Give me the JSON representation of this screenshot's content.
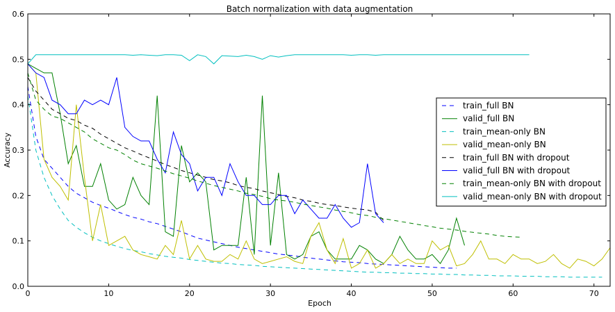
{
  "chart_data": {
    "type": "line",
    "title": "Batch normalization with data augmentation",
    "xlabel": "Epoch",
    "ylabel": "Accuracy",
    "xlim": [
      0,
      72
    ],
    "ylim": [
      0,
      0.6
    ],
    "xticks": [
      0,
      10,
      20,
      30,
      40,
      50,
      60,
      70
    ],
    "yticks": [
      0.0,
      0.1,
      0.2,
      0.3,
      0.4,
      0.5,
      0.6
    ],
    "xtick_labels": [
      "0",
      "10",
      "20",
      "30",
      "40",
      "50",
      "60",
      "70"
    ],
    "ytick_labels": [
      "0.0",
      "0.1",
      "0.2",
      "0.3",
      "0.4",
      "0.5",
      "0.6"
    ],
    "grid": false,
    "legend_position": "center-right",
    "series": [
      {
        "name": "train_full BN",
        "color": "#0000ff",
        "dash": "dashed",
        "x": [
          0,
          1,
          2,
          3,
          4,
          5,
          6,
          7,
          8,
          9,
          10,
          11,
          12,
          13,
          14,
          15,
          16,
          17,
          18,
          19,
          20,
          21,
          22,
          23,
          24,
          25,
          26,
          27,
          28,
          29,
          30,
          31,
          32,
          33,
          34,
          35,
          36,
          37,
          38,
          39,
          40,
          41,
          42,
          43,
          44,
          45,
          46,
          47,
          48,
          49,
          50,
          51,
          52,
          53
        ],
        "y": [
          0.44,
          0.33,
          0.28,
          0.26,
          0.24,
          0.22,
          0.205,
          0.195,
          0.185,
          0.178,
          0.172,
          0.165,
          0.158,
          0.152,
          0.148,
          0.142,
          0.138,
          0.132,
          0.126,
          0.12,
          0.113,
          0.106,
          0.102,
          0.098,
          0.094,
          0.09,
          0.086,
          0.083,
          0.08,
          0.077,
          0.074,
          0.071,
          0.069,
          0.067,
          0.064,
          0.062,
          0.06,
          0.058,
          0.056,
          0.054,
          0.053,
          0.052,
          0.05,
          0.049,
          0.048,
          0.047,
          0.046,
          0.045,
          0.044,
          0.043,
          0.042,
          0.041,
          0.04,
          0.04
        ]
      },
      {
        "name": "valid_full BN",
        "color": "#008000",
        "dash": "solid",
        "x": [
          0,
          1,
          2,
          3,
          4,
          5,
          6,
          7,
          8,
          9,
          10,
          11,
          12,
          13,
          14,
          15,
          16,
          17,
          18,
          19,
          20,
          21,
          22,
          23,
          24,
          25,
          26,
          27,
          28,
          29,
          30,
          31,
          32,
          33,
          34,
          35,
          36,
          37,
          38,
          39,
          40,
          41,
          42,
          43,
          44,
          45,
          46,
          47,
          48,
          49,
          50,
          51,
          52,
          53,
          54
        ],
        "y": [
          0.49,
          0.48,
          0.47,
          0.47,
          0.38,
          0.27,
          0.31,
          0.22,
          0.22,
          0.27,
          0.19,
          0.17,
          0.18,
          0.24,
          0.2,
          0.18,
          0.42,
          0.12,
          0.11,
          0.31,
          0.23,
          0.25,
          0.23,
          0.08,
          0.09,
          0.09,
          0.09,
          0.24,
          0.07,
          0.42,
          0.09,
          0.25,
          0.07,
          0.06,
          0.07,
          0.11,
          0.12,
          0.08,
          0.06,
          0.06,
          0.06,
          0.09,
          0.08,
          0.06,
          0.05,
          0.07,
          0.11,
          0.08,
          0.06,
          0.06,
          0.07,
          0.05,
          0.08,
          0.15,
          0.09
        ]
      },
      {
        "name": "train_mean-only BN",
        "color": "#00bfbf",
        "dash": "dashed",
        "x": [
          0,
          1,
          2,
          3,
          4,
          5,
          6,
          7,
          8,
          9,
          10,
          11,
          12,
          13,
          14,
          15,
          16,
          17,
          18,
          19,
          20,
          21,
          22,
          23,
          24,
          25,
          26,
          27,
          28,
          29,
          30,
          31,
          32,
          33,
          34,
          35,
          36,
          37,
          38,
          39,
          40,
          41,
          42,
          43,
          44,
          45,
          46,
          47,
          48,
          49,
          50,
          51,
          52,
          53,
          54,
          55,
          56,
          57,
          58,
          59,
          60,
          61,
          62,
          63,
          64,
          65,
          66,
          67,
          68,
          69,
          70,
          71
        ],
        "y": [
          0.42,
          0.3,
          0.24,
          0.2,
          0.17,
          0.145,
          0.13,
          0.118,
          0.108,
          0.1,
          0.094,
          0.088,
          0.083,
          0.079,
          0.076,
          0.072,
          0.069,
          0.066,
          0.064,
          0.062,
          0.059,
          0.057,
          0.055,
          0.053,
          0.051,
          0.05,
          0.048,
          0.047,
          0.046,
          0.044,
          0.043,
          0.042,
          0.041,
          0.04,
          0.039,
          0.038,
          0.037,
          0.036,
          0.035,
          0.034,
          0.033,
          0.032,
          0.031,
          0.031,
          0.03,
          0.03,
          0.029,
          0.029,
          0.028,
          0.028,
          0.027,
          0.027,
          0.026,
          0.026,
          0.025,
          0.025,
          0.024,
          0.024,
          0.023,
          0.023,
          0.023,
          0.022,
          0.022,
          0.022,
          0.021,
          0.021,
          0.021,
          0.02,
          0.02,
          0.02,
          0.02,
          0.02
        ]
      },
      {
        "name": "valid_mean-only BN",
        "color": "#bfbf00",
        "dash": "solid",
        "x": [
          0,
          1,
          2,
          3,
          4,
          5,
          6,
          7,
          8,
          9,
          10,
          11,
          12,
          13,
          14,
          15,
          16,
          17,
          18,
          19,
          20,
          21,
          22,
          23,
          24,
          25,
          26,
          27,
          28,
          29,
          30,
          31,
          32,
          33,
          34,
          35,
          36,
          37,
          38,
          39,
          40,
          41,
          42,
          43,
          44,
          45,
          46,
          47,
          48,
          49,
          50,
          51,
          52,
          53,
          54,
          55,
          56,
          57,
          58,
          59,
          60,
          61,
          62,
          63,
          64,
          65,
          66,
          67,
          68,
          69,
          70,
          71,
          72
        ],
        "y": [
          0.49,
          0.47,
          0.28,
          0.24,
          0.22,
          0.19,
          0.4,
          0.24,
          0.1,
          0.18,
          0.09,
          0.1,
          0.11,
          0.08,
          0.07,
          0.065,
          0.06,
          0.09,
          0.07,
          0.145,
          0.06,
          0.09,
          0.06,
          0.055,
          0.055,
          0.07,
          0.06,
          0.1,
          0.06,
          0.05,
          0.055,
          0.06,
          0.065,
          0.055,
          0.05,
          0.11,
          0.14,
          0.08,
          0.05,
          0.105,
          0.04,
          0.05,
          0.08,
          0.04,
          0.05,
          0.07,
          0.05,
          0.06,
          0.05,
          0.05,
          0.1,
          0.08,
          0.09,
          0.045,
          0.05,
          0.07,
          0.1,
          0.06,
          0.06,
          0.05,
          0.07,
          0.06,
          0.06,
          0.05,
          0.055,
          0.07,
          0.05,
          0.04,
          0.06,
          0.055,
          0.045,
          0.06,
          0.085
        ]
      },
      {
        "name": "train_full BN with dropout",
        "color": "#000000",
        "dash": "dashed",
        "x": [
          0,
          1,
          2,
          3,
          4,
          5,
          6,
          7,
          8,
          9,
          10,
          11,
          12,
          13,
          14,
          15,
          16,
          17,
          18,
          19,
          20,
          21,
          22,
          23,
          24,
          25,
          26,
          27,
          28,
          29,
          30,
          31,
          32,
          33,
          34,
          35,
          36,
          37,
          38,
          39,
          40,
          41,
          42,
          43,
          44
        ],
        "y": [
          0.46,
          0.43,
          0.41,
          0.39,
          0.38,
          0.37,
          0.365,
          0.355,
          0.348,
          0.335,
          0.325,
          0.315,
          0.305,
          0.298,
          0.29,
          0.283,
          0.276,
          0.268,
          0.262,
          0.255,
          0.25,
          0.245,
          0.24,
          0.235,
          0.232,
          0.228,
          0.222,
          0.218,
          0.215,
          0.21,
          0.206,
          0.202,
          0.198,
          0.195,
          0.19,
          0.187,
          0.183,
          0.18,
          0.178,
          0.175,
          0.172,
          0.17,
          0.168,
          0.163,
          0.145
        ]
      },
      {
        "name": "valid_full BN with dropout",
        "color": "#0000ff",
        "dash": "solid",
        "x": [
          0,
          1,
          2,
          3,
          4,
          5,
          6,
          7,
          8,
          9,
          10,
          11,
          12,
          13,
          14,
          15,
          16,
          17,
          18,
          19,
          20,
          21,
          22,
          23,
          24,
          25,
          26,
          27,
          28,
          29,
          30,
          31,
          32,
          33,
          34,
          35,
          36,
          37,
          38,
          39,
          40,
          41,
          42,
          43,
          44
        ],
        "y": [
          0.49,
          0.47,
          0.46,
          0.41,
          0.4,
          0.38,
          0.38,
          0.41,
          0.4,
          0.41,
          0.4,
          0.46,
          0.35,
          0.33,
          0.32,
          0.32,
          0.28,
          0.25,
          0.34,
          0.29,
          0.27,
          0.21,
          0.24,
          0.24,
          0.2,
          0.27,
          0.23,
          0.2,
          0.2,
          0.18,
          0.18,
          0.2,
          0.2,
          0.16,
          0.19,
          0.17,
          0.15,
          0.15,
          0.18,
          0.15,
          0.13,
          0.14,
          0.27,
          0.16,
          0.14
        ]
      },
      {
        "name": "train_mean-only BN with dropout",
        "color": "#008000",
        "dash": "dashed",
        "x": [
          0,
          1,
          2,
          3,
          4,
          5,
          6,
          7,
          8,
          9,
          10,
          11,
          12,
          13,
          14,
          15,
          16,
          17,
          18,
          19,
          20,
          21,
          22,
          23,
          24,
          25,
          26,
          27,
          28,
          29,
          30,
          31,
          32,
          33,
          34,
          35,
          36,
          37,
          38,
          39,
          40,
          41,
          42,
          43,
          44,
          45,
          46,
          47,
          48,
          49,
          50,
          51,
          52,
          53,
          54,
          55,
          56,
          57,
          58,
          59,
          60,
          61
        ],
        "y": [
          0.47,
          0.41,
          0.39,
          0.375,
          0.37,
          0.36,
          0.35,
          0.34,
          0.325,
          0.315,
          0.305,
          0.3,
          0.29,
          0.278,
          0.27,
          0.265,
          0.26,
          0.254,
          0.248,
          0.243,
          0.238,
          0.232,
          0.227,
          0.222,
          0.218,
          0.214,
          0.21,
          0.205,
          0.202,
          0.198,
          0.193,
          0.19,
          0.188,
          0.185,
          0.181,
          0.178,
          0.175,
          0.172,
          0.168,
          0.165,
          0.162,
          0.158,
          0.156,
          0.152,
          0.149,
          0.146,
          0.143,
          0.14,
          0.137,
          0.134,
          0.131,
          0.128,
          0.126,
          0.124,
          0.121,
          0.119,
          0.117,
          0.115,
          0.112,
          0.11,
          0.109,
          0.108
        ]
      },
      {
        "name": "valid_mean-only BN with dropout",
        "color": "#00bfbf",
        "dash": "solid",
        "x": [
          0,
          1,
          2,
          3,
          4,
          5,
          6,
          7,
          8,
          9,
          10,
          11,
          12,
          13,
          14,
          15,
          16,
          17,
          18,
          19,
          20,
          21,
          22,
          23,
          24,
          25,
          26,
          27,
          28,
          29,
          30,
          31,
          32,
          33,
          34,
          35,
          36,
          37,
          38,
          39,
          40,
          41,
          42,
          43,
          44,
          45,
          46,
          47,
          48,
          49,
          50,
          51,
          52,
          53,
          54,
          55,
          56,
          57,
          58,
          59,
          60,
          61,
          62
        ],
        "y": [
          0.49,
          0.51,
          0.51,
          0.51,
          0.51,
          0.51,
          0.51,
          0.51,
          0.51,
          0.51,
          0.51,
          0.51,
          0.51,
          0.509,
          0.51,
          0.509,
          0.508,
          0.51,
          0.51,
          0.509,
          0.497,
          0.51,
          0.506,
          0.49,
          0.508,
          0.507,
          0.506,
          0.509,
          0.506,
          0.5,
          0.508,
          0.505,
          0.508,
          0.51,
          0.51,
          0.51,
          0.51,
          0.51,
          0.51,
          0.51,
          0.509,
          0.51,
          0.51,
          0.509,
          0.51,
          0.51,
          0.51,
          0.51,
          0.51,
          0.51,
          0.51,
          0.51,
          0.51,
          0.51,
          0.51,
          0.51,
          0.51,
          0.51,
          0.51,
          0.51,
          0.51,
          0.51,
          0.51
        ]
      }
    ]
  }
}
